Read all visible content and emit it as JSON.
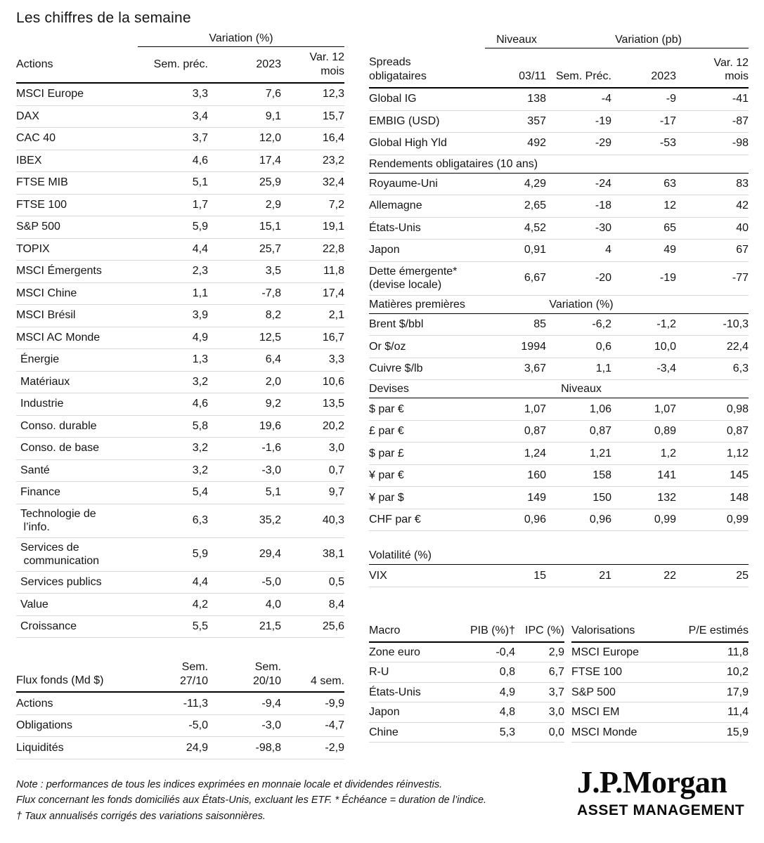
{
  "title": "Les chiffres de la semaine",
  "colors": {
    "background": "#ffffff",
    "text": "#141414",
    "rule_dark": "#000000",
    "rule_light": "#d9d9d9"
  },
  "actions": {
    "group_header": "Variation (%)",
    "col_label": "Actions",
    "cols": [
      "Sem. préc.",
      "2023",
      "Var. 12\nmois"
    ],
    "rows": [
      {
        "label": "MSCI Europe",
        "values": [
          "3,3",
          "7,6",
          "12,3"
        ]
      },
      {
        "label": "DAX",
        "values": [
          "3,4",
          "9,1",
          "15,7"
        ]
      },
      {
        "label": "CAC 40",
        "values": [
          "3,7",
          "12,0",
          "16,4"
        ]
      },
      {
        "label": "IBEX",
        "values": [
          "4,6",
          "17,4",
          "23,2"
        ]
      },
      {
        "label": "FTSE MIB",
        "values": [
          "5,1",
          "25,9",
          "32,4"
        ]
      },
      {
        "label": "FTSE 100",
        "values": [
          "1,7",
          "2,9",
          "7,2"
        ]
      },
      {
        "label": "S&P 500",
        "values": [
          "5,9",
          "15,1",
          "19,1"
        ]
      },
      {
        "label": "TOPIX",
        "values": [
          "4,4",
          "25,7",
          "22,8"
        ]
      },
      {
        "label": "MSCI Émergents",
        "values": [
          "2,3",
          "3,5",
          "11,8"
        ]
      },
      {
        "label": "MSCI Chine",
        "values": [
          "1,1",
          "-7,8",
          "17,4"
        ]
      },
      {
        "label": "MSCI Brésil",
        "values": [
          "3,9",
          "8,2",
          "2,1"
        ]
      },
      {
        "label": "MSCI AC Monde",
        "values": [
          "4,9",
          "12,5",
          "16,7"
        ]
      },
      {
        "label": "Énergie",
        "values": [
          "1,3",
          "6,4",
          "3,3"
        ],
        "indent": true
      },
      {
        "label": "Matériaux",
        "values": [
          "3,2",
          "2,0",
          "10,6"
        ],
        "indent": true
      },
      {
        "label": "Industrie",
        "values": [
          "4,6",
          "9,2",
          "13,5"
        ],
        "indent": true
      },
      {
        "label": "Conso. durable",
        "values": [
          "5,8",
          "19,6",
          "20,2"
        ],
        "indent": true
      },
      {
        "label": "Conso. de base",
        "values": [
          "3,2",
          "-1,6",
          "3,0"
        ],
        "indent": true
      },
      {
        "label": "Santé",
        "values": [
          "3,2",
          "-3,0",
          "0,7"
        ],
        "indent": true
      },
      {
        "label": "Finance",
        "values": [
          "5,4",
          "5,1",
          "9,7"
        ],
        "indent": true
      },
      {
        "label": "Technologie de\n l’info.",
        "values": [
          "6,3",
          "35,2",
          "40,3"
        ],
        "indent": true
      },
      {
        "label": "Services de\n communication",
        "values": [
          "5,9",
          "29,4",
          "38,1"
        ],
        "indent": true
      },
      {
        "label": "Services publics",
        "values": [
          "4,4",
          "-5,0",
          "0,5"
        ],
        "indent": true
      },
      {
        "label": "Value",
        "values": [
          "4,2",
          "4,0",
          "8,4"
        ],
        "indent": true
      },
      {
        "label": "Croissance",
        "values": [
          "5,5",
          "21,5",
          "25,6"
        ],
        "indent": true
      }
    ]
  },
  "flux": {
    "col_label": "Flux fonds (Md $)",
    "cols": [
      "Sem.\n27/10",
      "Sem.\n20/10",
      "4 sem."
    ],
    "rows": [
      {
        "label": "Actions",
        "values": [
          "-11,3",
          "-9,4",
          "-9,9"
        ]
      },
      {
        "label": "Obligations",
        "values": [
          "-5,0",
          "-3,0",
          "-4,7"
        ]
      },
      {
        "label": "Liquidités",
        "values": [
          "24,9",
          "-98,8",
          "-2,9"
        ]
      }
    ]
  },
  "spreads": {
    "group_niveaux": "Niveaux",
    "group_variation": "Variation (pb)",
    "col_label": "Spreads\nobligataires",
    "cols": [
      "03/11",
      "Sem. Préc.",
      "2023",
      "Var. 12\nmois"
    ],
    "rows": [
      {
        "label": "Global IG",
        "values": [
          "138",
          "-4",
          "-9",
          "-41"
        ]
      },
      {
        "label": "EMBIG (USD)",
        "values": [
          "357",
          "-19",
          "-17",
          "-87"
        ]
      },
      {
        "label": "Global High Yld",
        "values": [
          "492",
          "-29",
          "-53",
          "-98"
        ]
      }
    ]
  },
  "sections": {
    "rendements": {
      "header": "Rendements obligataires (10 ans)",
      "rows": [
        {
          "label": "Royaume-Uni",
          "values": [
            "4,29",
            "-24",
            "63",
            "83"
          ]
        },
        {
          "label": "Allemagne",
          "values": [
            "2,65",
            "-18",
            "12",
            "42"
          ]
        },
        {
          "label": "États-Unis",
          "values": [
            "4,52",
            "-30",
            "65",
            "40"
          ]
        },
        {
          "label": "Japon",
          "values": [
            "0,91",
            "4",
            "49",
            "67"
          ]
        },
        {
          "label": "Dette émergente*\n(devise locale)",
          "values": [
            "6,67",
            "-20",
            "-19",
            "-77"
          ]
        }
      ]
    },
    "matieres": {
      "header": "Matières premières",
      "group": "Variation (%)",
      "rows": [
        {
          "label": "Brent $/bbl",
          "values": [
            "85",
            "-6,2",
            "-1,2",
            "-10,3"
          ]
        },
        {
          "label": "Or $/oz",
          "values": [
            "1994",
            "0,6",
            "10,0",
            "22,4"
          ]
        },
        {
          "label": "Cuivre $/lb",
          "values": [
            "3,67",
            "1,1",
            "-3,4",
            "6,3"
          ]
        }
      ]
    },
    "devises": {
      "header": "Devises",
      "group": "Niveaux",
      "rows": [
        {
          "label": "$ par €",
          "values": [
            "1,07",
            "1,06",
            "1,07",
            "0,98"
          ]
        },
        {
          "label": "£ par €",
          "values": [
            "0,87",
            "0,87",
            "0,89",
            "0,87"
          ]
        },
        {
          "label": "$ par £",
          "values": [
            "1,24",
            "1,21",
            "1,2",
            "1,12"
          ]
        },
        {
          "label": "¥ par €",
          "values": [
            "160",
            "158",
            "141",
            "145"
          ]
        },
        {
          "label": "¥ par $",
          "values": [
            "149",
            "150",
            "132",
            "148"
          ]
        },
        {
          "label": "CHF par €",
          "values": [
            "0,96",
            "0,96",
            "0,99",
            "0,99"
          ]
        }
      ]
    },
    "volatilite": {
      "header": "Volatilité (%)",
      "rows": [
        {
          "label": "VIX",
          "values": [
            "15",
            "21",
            "22",
            "25"
          ]
        }
      ]
    }
  },
  "macro": {
    "col_label": "Macro",
    "cols": [
      "PIB (%)†",
      "IPC (%)"
    ],
    "rows": [
      {
        "label": "Zone euro",
        "values": [
          "-0,4",
          "2,9"
        ]
      },
      {
        "label": "R-U",
        "values": [
          "0,8",
          "6,7"
        ]
      },
      {
        "label": "États-Unis",
        "values": [
          "4,9",
          "3,7"
        ]
      },
      {
        "label": "Japon",
        "values": [
          "4,8",
          "3,0"
        ]
      },
      {
        "label": "Chine",
        "values": [
          "5,3",
          "0,0"
        ]
      }
    ]
  },
  "valorisations": {
    "col_label": "Valorisations",
    "cols": [
      "P/E estimés"
    ],
    "rows": [
      {
        "label": "MSCI Europe",
        "values": [
          "11,8"
        ]
      },
      {
        "label": "FTSE 100",
        "values": [
          "10,2"
        ]
      },
      {
        "label": "S&P 500",
        "values": [
          "17,9"
        ]
      },
      {
        "label": "MSCI EM",
        "values": [
          "11,4"
        ]
      },
      {
        "label": "MSCI Monde",
        "values": [
          "15,9"
        ]
      }
    ]
  },
  "notes": [
    "Note : performances de tous les indices exprimées en monnaie locale et dividendes réinvestis.",
    "Flux concernant les fonds domiciliés aux États-Unis, excluant les ETF. * Échéance = duration de l’indice.",
    "† Taux annualisés corrigés des variations saisonnières."
  ],
  "logo": {
    "brand": "J.P.Morgan",
    "sub": "ASSET MANAGEMENT"
  }
}
